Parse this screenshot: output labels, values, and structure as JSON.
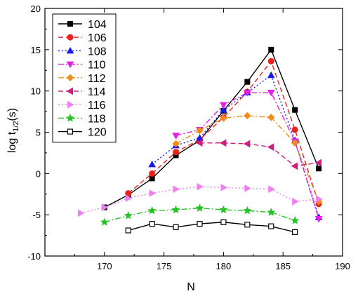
{
  "chart_data": {
    "type": "line",
    "xlabel": "N",
    "ylabel": "log t",
    "ylabel_sub": "1/2",
    "ylabel_suffix": "(s)",
    "xlim": [
      165,
      190
    ],
    "ylim": [
      -10,
      20
    ],
    "x_ticks": [
      170,
      175,
      180,
      185,
      190
    ],
    "y_ticks": [
      -10,
      -5,
      0,
      5,
      10,
      15,
      20
    ],
    "x_tick_labels": [
      "170",
      "175",
      "180",
      "185",
      "190"
    ],
    "y_tick_labels": [
      "-10",
      "-5",
      "0",
      "5",
      "10",
      "15",
      "20"
    ],
    "grid": false,
    "legend_position": "top-left",
    "series": [
      {
        "name": "104",
        "color": "#000000",
        "dash": "solid",
        "marker": "square-filled",
        "x": [
          170,
          172,
          174,
          176,
          178,
          180,
          182,
          184,
          186,
          188
        ],
        "y": [
          -4.1,
          -2.6,
          -0.6,
          2.2,
          4.0,
          7.6,
          11.1,
          15.0,
          7.7,
          0.6
        ]
      },
      {
        "name": "106",
        "color": "#e8231d",
        "dash": "dash",
        "marker": "circle",
        "x": [
          172,
          174,
          176,
          178,
          180,
          182,
          184,
          186,
          188
        ],
        "y": [
          -2.4,
          0.0,
          2.6,
          4.1,
          6.8,
          9.9,
          13.6,
          5.3,
          -3.7
        ]
      },
      {
        "name": "108",
        "color": "#1a1aee",
        "dash": "dot",
        "marker": "triangle-up",
        "x": [
          174,
          176,
          178,
          180,
          182,
          184,
          186,
          188
        ],
        "y": [
          1.1,
          3.4,
          4.3,
          7.7,
          9.8,
          11.9,
          4.0,
          -5.3
        ]
      },
      {
        "name": "110",
        "color": "#e61ee6",
        "dash": "dashdot",
        "marker": "triangle-down",
        "x": [
          176,
          178,
          180,
          182,
          184,
          186,
          188
        ],
        "y": [
          4.6,
          5.3,
          8.3,
          9.8,
          9.8,
          3.9,
          -5.5
        ]
      },
      {
        "name": "112",
        "color": "#f08c1e",
        "dash": "dashdot",
        "marker": "diamond",
        "x": [
          176,
          178,
          180,
          182,
          184,
          186,
          188
        ],
        "y": [
          3.6,
          5.2,
          6.7,
          7.0,
          6.8,
          3.7,
          -3.4
        ]
      },
      {
        "name": "114",
        "color": "#cc1f80",
        "dash": "dash",
        "marker": "triangle-left",
        "x": [
          178,
          180,
          182,
          184,
          186,
          188
        ],
        "y": [
          3.7,
          3.7,
          3.6,
          3.2,
          0.9,
          1.3
        ]
      },
      {
        "name": "116",
        "color": "#ef7fef",
        "dash": "dot",
        "marker": "triangle-right",
        "x": [
          168,
          170,
          172,
          174,
          176,
          178,
          180,
          182,
          184,
          186,
          188
        ],
        "y": [
          -4.8,
          -4.1,
          -3.0,
          -2.4,
          -1.9,
          -1.6,
          -1.7,
          -1.8,
          -1.9,
          -3.4,
          -3.1
        ]
      },
      {
        "name": "118",
        "color": "#22c422",
        "dash": "dashdot",
        "marker": "star",
        "x": [
          170,
          172,
          174,
          176,
          178,
          180,
          182,
          184,
          186
        ],
        "y": [
          -5.9,
          -5.1,
          -4.5,
          -4.4,
          -4.2,
          -4.4,
          -4.5,
          -4.7,
          -5.7
        ]
      },
      {
        "name": "120",
        "color": "#000000",
        "dash": "solid",
        "marker": "square-open",
        "x": [
          172,
          174,
          176,
          178,
          180,
          182,
          184,
          186
        ],
        "y": [
          -6.9,
          -6.1,
          -6.5,
          -6.1,
          -5.9,
          -6.2,
          -6.4,
          -7.1
        ]
      }
    ]
  }
}
